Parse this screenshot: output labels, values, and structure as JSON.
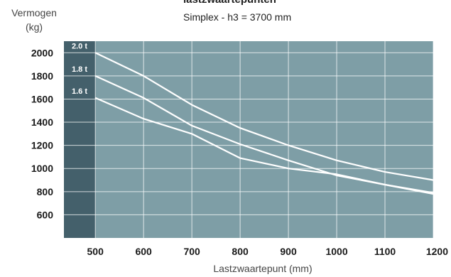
{
  "chart_data": {
    "type": "line",
    "title": "lastzwaartepunten",
    "subtitle": "Simplex - h3 = 3700 mm",
    "ylabel_line1": "Vermogen",
    "ylabel_line2": "(kg)",
    "xlabel": "Lastzwaartepunt (mm)",
    "xlim": [
      435,
      1200
    ],
    "ylim": [
      400,
      2100
    ],
    "x_ticks": [
      500,
      600,
      700,
      800,
      900,
      1000,
      1100,
      1200
    ],
    "y_ticks": [
      600,
      800,
      1000,
      1200,
      1400,
      1600,
      1800,
      2000
    ],
    "grid": true,
    "series": [
      {
        "name": "2.0 t",
        "x": [
          500,
          600,
          700,
          800,
          900,
          1000,
          1100,
          1200
        ],
        "y": [
          2000,
          1800,
          1550,
          1350,
          1200,
          1070,
          970,
          900
        ]
      },
      {
        "name": "1.8 t",
        "x": [
          500,
          600,
          700,
          800,
          900,
          1000,
          1100,
          1200
        ],
        "y": [
          1800,
          1610,
          1370,
          1210,
          1070,
          940,
          860,
          790
        ]
      },
      {
        "name": "1.6 t",
        "x": [
          500,
          600,
          700,
          800,
          900,
          1000,
          1100,
          1200
        ],
        "y": [
          1610,
          1430,
          1300,
          1090,
          1000,
          950,
          860,
          780
        ]
      }
    ]
  },
  "colors": {
    "plot_bg": "#7e9ea6",
    "left_band": "#44606b",
    "grid": "#ffffff",
    "line": "#ffffff"
  }
}
